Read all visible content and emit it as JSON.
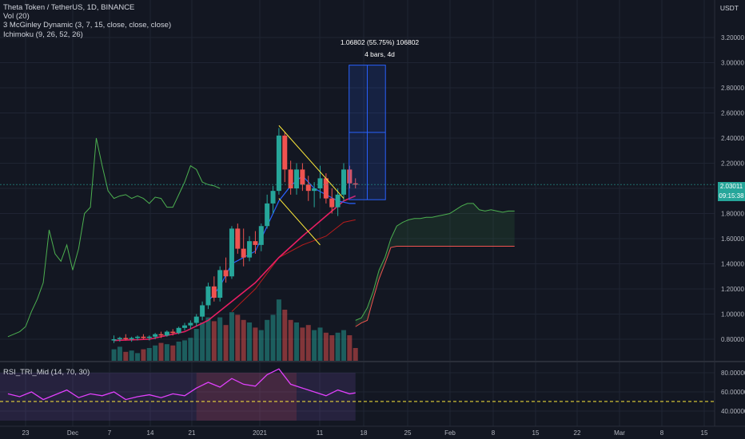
{
  "legend": {
    "symbol": "Theta Token / TetherUS, 1D, BINANCE",
    "volume": "Vol (20)",
    "mcginley": "3 McGinley Dynamic (3, 7, 15, close, close, close)",
    "ichimoku": "Ichimoku (9, 26, 52, 26)"
  },
  "currency": "USDT",
  "measure": {
    "line1": "1.06802 (55.75%) 106802",
    "line2": "4 bars, 4d"
  },
  "last_price": "2.03011",
  "countdown": "09:15:38",
  "rsi_label": "RSI_TRI_Mid (14, 70, 30)",
  "colors": {
    "background": "#131722",
    "up": "#26a69a",
    "down": "#ef5350",
    "ma_fast": "#2962ff",
    "ma_mid": "#e91e63",
    "ma_slow": "#b71c1c",
    "lagging": "#4caf50",
    "rsi_line": "#e040fb",
    "trendline": "#ffeb3b"
  },
  "chart_data": {
    "type": "candlestick",
    "title": "Theta Token / TetherUS, 1D, BINANCE",
    "x_tick_labels": [
      "23",
      "Dec",
      "7",
      "14",
      "21",
      "2021",
      "11",
      "18",
      "25",
      "Feb",
      "8",
      "15",
      "22",
      "Mar",
      "8",
      "15"
    ],
    "y_tick_labels": [
      "3.20000",
      "3.00000",
      "2.80000",
      "2.60000",
      "2.40000",
      "2.20000",
      "2.00000",
      "1.80000",
      "1.60000",
      "1.40000",
      "1.20000",
      "1.00000",
      "0.80000"
    ],
    "ylim": [
      0.7,
      3.4
    ],
    "rsi_tick_labels": [
      "80.00000",
      "60.00000",
      "40.00000"
    ],
    "rsi_ylim": [
      30,
      90
    ],
    "candles": [
      {
        "date": "2020-12-08",
        "o": 0.79,
        "h": 0.83,
        "l": 0.77,
        "c": 0.8
      },
      {
        "date": "2020-12-09",
        "o": 0.8,
        "h": 0.82,
        "l": 0.78,
        "c": 0.81
      },
      {
        "date": "2020-12-10",
        "o": 0.81,
        "h": 0.84,
        "l": 0.79,
        "c": 0.8
      },
      {
        "date": "2020-12-11",
        "o": 0.8,
        "h": 0.82,
        "l": 0.78,
        "c": 0.81
      },
      {
        "date": "2020-12-12",
        "o": 0.81,
        "h": 0.83,
        "l": 0.79,
        "c": 0.82
      },
      {
        "date": "2020-12-13",
        "o": 0.82,
        "h": 0.84,
        "l": 0.8,
        "c": 0.81
      },
      {
        "date": "2020-12-14",
        "o": 0.81,
        "h": 0.83,
        "l": 0.79,
        "c": 0.82
      },
      {
        "date": "2020-12-15",
        "o": 0.82,
        "h": 0.85,
        "l": 0.8,
        "c": 0.84
      },
      {
        "date": "2020-12-16",
        "o": 0.84,
        "h": 0.86,
        "l": 0.81,
        "c": 0.83
      },
      {
        "date": "2020-12-17",
        "o": 0.83,
        "h": 0.87,
        "l": 0.82,
        "c": 0.86
      },
      {
        "date": "2020-12-18",
        "o": 0.86,
        "h": 0.88,
        "l": 0.83,
        "c": 0.85
      },
      {
        "date": "2020-12-19",
        "o": 0.85,
        "h": 0.9,
        "l": 0.84,
        "c": 0.89
      },
      {
        "date": "2020-12-20",
        "o": 0.89,
        "h": 0.93,
        "l": 0.87,
        "c": 0.91
      },
      {
        "date": "2020-12-21",
        "o": 0.91,
        "h": 0.95,
        "l": 0.88,
        "c": 0.93
      },
      {
        "date": "2020-12-22",
        "o": 0.93,
        "h": 1.0,
        "l": 0.9,
        "c": 0.98
      },
      {
        "date": "2020-12-23",
        "o": 0.98,
        "h": 1.1,
        "l": 0.95,
        "c": 1.07
      },
      {
        "date": "2020-12-24",
        "o": 1.07,
        "h": 1.25,
        "l": 1.04,
        "c": 1.22
      },
      {
        "date": "2020-12-25",
        "o": 1.22,
        "h": 1.3,
        "l": 1.1,
        "c": 1.13
      },
      {
        "date": "2020-12-26",
        "o": 1.13,
        "h": 1.38,
        "l": 1.1,
        "c": 1.35
      },
      {
        "date": "2020-12-27",
        "o": 1.35,
        "h": 1.45,
        "l": 1.25,
        "c": 1.3
      },
      {
        "date": "2020-12-28",
        "o": 1.3,
        "h": 1.7,
        "l": 1.28,
        "c": 1.68
      },
      {
        "date": "2020-12-29",
        "o": 1.68,
        "h": 1.72,
        "l": 1.48,
        "c": 1.52
      },
      {
        "date": "2020-12-30",
        "o": 1.52,
        "h": 1.68,
        "l": 1.38,
        "c": 1.45
      },
      {
        "date": "2020-12-31",
        "o": 1.45,
        "h": 1.62,
        "l": 1.42,
        "c": 1.58
      },
      {
        "date": "2021-01-01",
        "o": 1.58,
        "h": 1.66,
        "l": 1.48,
        "c": 1.55
      },
      {
        "date": "2021-01-02",
        "o": 1.55,
        "h": 1.72,
        "l": 1.5,
        "c": 1.7
      },
      {
        "date": "2021-01-03",
        "o": 1.7,
        "h": 1.95,
        "l": 1.68,
        "c": 1.88
      },
      {
        "date": "2021-01-04",
        "o": 1.88,
        "h": 2.02,
        "l": 1.8,
        "c": 1.98
      },
      {
        "date": "2021-01-05",
        "o": 1.98,
        "h": 2.48,
        "l": 1.95,
        "c": 2.42
      },
      {
        "date": "2021-01-06",
        "o": 2.42,
        "h": 2.45,
        "l": 2.05,
        "c": 2.15
      },
      {
        "date": "2021-01-07",
        "o": 2.15,
        "h": 2.22,
        "l": 1.95,
        "c": 2.0
      },
      {
        "date": "2021-01-08",
        "o": 2.0,
        "h": 2.2,
        "l": 1.95,
        "c": 2.15
      },
      {
        "date": "2021-01-09",
        "o": 2.15,
        "h": 2.2,
        "l": 1.98,
        "c": 2.03
      },
      {
        "date": "2021-01-10",
        "o": 2.03,
        "h": 2.1,
        "l": 1.9,
        "c": 1.98
      },
      {
        "date": "2021-01-11",
        "o": 1.98,
        "h": 2.05,
        "l": 1.85,
        "c": 2.0
      },
      {
        "date": "2021-01-12",
        "o": 2.0,
        "h": 2.18,
        "l": 1.92,
        "c": 2.08
      },
      {
        "date": "2021-01-13",
        "o": 2.08,
        "h": 2.12,
        "l": 1.88,
        "c": 1.92
      },
      {
        "date": "2021-01-14",
        "o": 1.92,
        "h": 2.0,
        "l": 1.8,
        "c": 1.85
      },
      {
        "date": "2021-01-15",
        "o": 1.85,
        "h": 2.0,
        "l": 1.78,
        "c": 1.95
      },
      {
        "date": "2021-01-16",
        "o": 1.95,
        "h": 2.2,
        "l": 1.9,
        "c": 2.15
      },
      {
        "date": "2021-01-17",
        "o": 2.15,
        "h": 2.18,
        "l": 2.0,
        "c": 2.04
      },
      {
        "date": "2021-01-18",
        "o": 2.04,
        "h": 2.08,
        "l": 2.0,
        "c": 2.03
      }
    ],
    "ichimoku_cloud": {
      "span_a": [
        [
          "2021-01-18",
          0.95
        ],
        [
          "2021-01-19",
          0.97
        ],
        [
          "2021-01-20",
          1.05
        ],
        [
          "2021-01-21",
          1.18
        ],
        [
          "2021-01-22",
          1.35
        ],
        [
          "2021-01-23",
          1.45
        ],
        [
          "2021-01-24",
          1.6
        ],
        [
          "2021-01-25",
          1.7
        ],
        [
          "2021-01-26",
          1.73
        ],
        [
          "2021-01-27",
          1.75
        ],
        [
          "2021-01-28",
          1.76
        ],
        [
          "2021-01-29",
          1.76
        ],
        [
          "2021-01-30",
          1.77
        ],
        [
          "2021-01-31",
          1.77
        ],
        [
          "2021-02-01",
          1.78
        ],
        [
          "2021-02-02",
          1.79
        ],
        [
          "2021-02-03",
          1.8
        ],
        [
          "2021-02-04",
          1.83
        ],
        [
          "2021-02-05",
          1.86
        ],
        [
          "2021-02-06",
          1.88
        ],
        [
          "2021-02-07",
          1.88
        ],
        [
          "2021-02-08",
          1.83
        ],
        [
          "2021-02-09",
          1.82
        ],
        [
          "2021-02-10",
          1.83
        ],
        [
          "2021-02-11",
          1.82
        ],
        [
          "2021-02-12",
          1.81
        ],
        [
          "2021-02-13",
          1.82
        ],
        [
          "2021-02-14",
          1.82
        ]
      ],
      "span_b": [
        [
          "2021-01-18",
          0.9
        ],
        [
          "2021-01-19",
          0.93
        ],
        [
          "2021-01-20",
          0.95
        ],
        [
          "2021-01-21",
          1.12
        ],
        [
          "2021-01-22",
          1.28
        ],
        [
          "2021-01-23",
          1.4
        ],
        [
          "2021-01-24",
          1.53
        ],
        [
          "2021-01-25",
          1.54
        ],
        [
          "2021-01-26",
          1.54
        ],
        [
          "2021-01-27",
          1.54
        ],
        [
          "2021-01-28",
          1.54
        ],
        [
          "2021-01-29",
          1.54
        ],
        [
          "2021-01-30",
          1.54
        ],
        [
          "2021-01-31",
          1.54
        ],
        [
          "2021-02-01",
          1.54
        ],
        [
          "2021-02-02",
          1.54
        ],
        [
          "2021-02-03",
          1.54
        ],
        [
          "2021-02-04",
          1.54
        ],
        [
          "2021-02-05",
          1.54
        ],
        [
          "2021-02-06",
          1.54
        ],
        [
          "2021-02-07",
          1.54
        ],
        [
          "2021-02-08",
          1.54
        ],
        [
          "2021-02-09",
          1.54
        ],
        [
          "2021-02-10",
          1.54
        ],
        [
          "2021-02-11",
          1.54
        ],
        [
          "2021-02-12",
          1.54
        ],
        [
          "2021-02-13",
          1.54
        ],
        [
          "2021-02-14",
          1.54
        ]
      ]
    },
    "lagging_span": [
      [
        "2020-11-20",
        0.82
      ],
      [
        "2020-11-21",
        0.84
      ],
      [
        "2020-11-22",
        0.86
      ],
      [
        "2020-11-23",
        0.9
      ],
      [
        "2020-11-24",
        1.02
      ],
      [
        "2020-11-25",
        1.12
      ],
      [
        "2020-11-26",
        1.25
      ],
      [
        "2020-11-27",
        1.67
      ],
      [
        "2020-11-28",
        1.48
      ],
      [
        "2020-11-29",
        1.42
      ],
      [
        "2020-11-30",
        1.55
      ],
      [
        "2020-12-01",
        1.35
      ],
      [
        "2020-12-02",
        1.52
      ],
      [
        "2020-12-03",
        1.8
      ],
      [
        "2020-12-04",
        1.85
      ],
      [
        "2020-12-05",
        2.4
      ],
      [
        "2020-12-06",
        2.18
      ],
      [
        "2020-12-07",
        1.98
      ],
      [
        "2020-12-08",
        1.92
      ],
      [
        "2020-12-09",
        1.94
      ],
      [
        "2020-12-10",
        1.95
      ],
      [
        "2020-12-11",
        1.92
      ],
      [
        "2020-12-12",
        1.94
      ],
      [
        "2020-12-13",
        1.92
      ],
      [
        "2020-12-14",
        1.88
      ],
      [
        "2020-12-15",
        1.93
      ],
      [
        "2020-12-16",
        1.92
      ],
      [
        "2020-12-17",
        1.85
      ],
      [
        "2020-12-18",
        1.85
      ],
      [
        "2020-12-19",
        1.95
      ],
      [
        "2020-12-20",
        2.05
      ],
      [
        "2020-12-21",
        2.18
      ],
      [
        "2020-12-22",
        2.15
      ],
      [
        "2020-12-23",
        2.05
      ],
      [
        "2020-12-24",
        2.03
      ],
      [
        "2020-12-25",
        2.02
      ],
      [
        "2020-12-26",
        2.0
      ]
    ],
    "mcginley_fast": [
      [
        "2020-12-24",
        1.1
      ],
      [
        "2020-12-26",
        1.22
      ],
      [
        "2020-12-28",
        1.4
      ],
      [
        "2020-12-30",
        1.45
      ],
      [
        "2021-01-01",
        1.5
      ],
      [
        "2021-01-03",
        1.7
      ],
      [
        "2021-01-05",
        1.9
      ],
      [
        "2021-01-07",
        2.02
      ],
      [
        "2021-01-09",
        2.1
      ],
      [
        "2021-01-11",
        2.0
      ],
      [
        "2021-01-13",
        1.95
      ],
      [
        "2021-01-15",
        1.9
      ],
      [
        "2021-01-17",
        1.88
      ],
      [
        "2021-01-18",
        1.88
      ]
    ],
    "mcginley_mid": [
      [
        "2020-12-08",
        0.79
      ],
      [
        "2020-12-14",
        0.8
      ],
      [
        "2020-12-20",
        0.86
      ],
      [
        "2020-12-24",
        0.95
      ],
      [
        "2020-12-28",
        1.1
      ],
      [
        "2021-01-01",
        1.25
      ],
      [
        "2021-01-05",
        1.45
      ],
      [
        "2021-01-09",
        1.62
      ],
      [
        "2021-01-13",
        1.78
      ],
      [
        "2021-01-16",
        1.9
      ],
      [
        "2021-01-18",
        1.94
      ]
    ],
    "mcginley_slow": [
      [
        "2020-12-28",
        1.02
      ],
      [
        "2021-01-01",
        1.2
      ],
      [
        "2021-01-05",
        1.45
      ],
      [
        "2021-01-09",
        1.55
      ],
      [
        "2021-01-13",
        1.62
      ],
      [
        "2021-01-16",
        1.73
      ],
      [
        "2021-01-18",
        1.75
      ]
    ],
    "trendlines": [
      {
        "from": [
          "2021-01-05",
          2.5
        ],
        "to": [
          "2021-01-16",
          1.92
        ]
      },
      {
        "from": [
          "2021-01-05",
          1.92
        ],
        "to": [
          "2021-01-12",
          1.55
        ]
      }
    ],
    "measure_range": {
      "from_date": "2021-01-18",
      "to_date": "2021-01-22",
      "low": 1.91,
      "high": 2.98
    },
    "volume": [
      [
        "2020-12-08",
        0.9
      ],
      [
        "2020-12-09",
        1.1
      ],
      [
        "2020-12-10",
        0.7
      ],
      [
        "2020-12-11",
        0.8
      ],
      [
        "2020-12-12",
        0.6
      ],
      [
        "2020-12-13",
        0.9
      ],
      [
        "2020-12-14",
        1.0
      ],
      [
        "2020-12-15",
        1.2
      ],
      [
        "2020-12-16",
        1.4
      ],
      [
        "2020-12-17",
        1.3
      ],
      [
        "2020-12-18",
        1.2
      ],
      [
        "2020-12-19",
        1.5
      ],
      [
        "2020-12-20",
        1.6
      ],
      [
        "2020-12-21",
        1.8
      ],
      [
        "2020-12-22",
        2.5
      ],
      [
        "2020-12-23",
        3.0
      ],
      [
        "2020-12-24",
        3.4
      ],
      [
        "2020-12-25",
        3.1
      ],
      [
        "2020-12-26",
        3.4
      ],
      [
        "2020-12-27",
        2.8
      ],
      [
        "2020-12-28",
        3.8
      ],
      [
        "2020-12-29",
        3.6
      ],
      [
        "2020-12-30",
        3.2
      ],
      [
        "2020-12-31",
        3.0
      ],
      [
        "2021-01-01",
        2.6
      ],
      [
        "2021-01-02",
        2.4
      ],
      [
        "2021-01-03",
        3.2
      ],
      [
        "2021-01-04",
        3.6
      ],
      [
        "2021-01-05",
        4.8
      ],
      [
        "2021-01-06",
        4.0
      ],
      [
        "2021-01-07",
        3.2
      ],
      [
        "2021-01-08",
        3.0
      ],
      [
        "2021-01-09",
        2.6
      ],
      [
        "2021-01-10",
        2.8
      ],
      [
        "2021-01-11",
        2.4
      ],
      [
        "2021-01-12",
        2.6
      ],
      [
        "2021-01-13",
        2.2
      ],
      [
        "2021-01-14",
        2.0
      ],
      [
        "2021-01-15",
        2.2
      ],
      [
        "2021-01-16",
        2.4
      ],
      [
        "2021-01-17",
        2.0
      ],
      [
        "2021-01-18",
        1.0
      ]
    ],
    "rsi": [
      [
        "2020-11-20",
        58
      ],
      [
        "2020-11-22",
        55
      ],
      [
        "2020-11-24",
        60
      ],
      [
        "2020-11-26",
        52
      ],
      [
        "2020-11-28",
        57
      ],
      [
        "2020-11-30",
        62
      ],
      [
        "2020-12-02",
        54
      ],
      [
        "2020-12-04",
        58
      ],
      [
        "2020-12-06",
        56
      ],
      [
        "2020-12-08",
        60
      ],
      [
        "2020-12-10",
        52
      ],
      [
        "2020-12-12",
        55
      ],
      [
        "2020-12-14",
        57
      ],
      [
        "2020-12-16",
        54
      ],
      [
        "2020-12-18",
        58
      ],
      [
        "2020-12-20",
        56
      ],
      [
        "2020-12-22",
        64
      ],
      [
        "2020-12-24",
        70
      ],
      [
        "2020-12-26",
        65
      ],
      [
        "2020-12-28",
        74
      ],
      [
        "2020-12-30",
        68
      ],
      [
        "2021-01-01",
        66
      ],
      [
        "2021-01-03",
        78
      ],
      [
        "2021-01-05",
        84
      ],
      [
        "2021-01-07",
        68
      ],
      [
        "2021-01-09",
        64
      ],
      [
        "2021-01-11",
        60
      ],
      [
        "2021-01-13",
        56
      ],
      [
        "2021-01-15",
        62
      ],
      [
        "2021-01-17",
        58
      ],
      [
        "2021-01-18",
        59
      ]
    ],
    "rsi_reference": 50
  }
}
